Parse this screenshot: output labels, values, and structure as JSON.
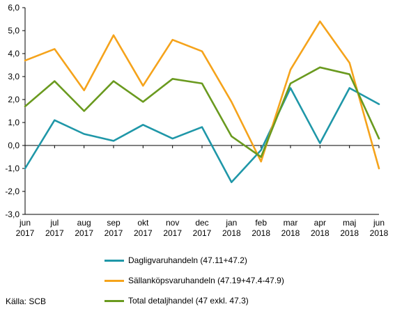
{
  "chart_data": {
    "type": "line",
    "categories": [
      [
        "jun",
        "2017"
      ],
      [
        "jul",
        "2017"
      ],
      [
        "aug",
        "2017"
      ],
      [
        "sep",
        "2017"
      ],
      [
        "okt",
        "2017"
      ],
      [
        "nov",
        "2017"
      ],
      [
        "dec",
        "2017"
      ],
      [
        "jan",
        "2018"
      ],
      [
        "feb",
        "2018"
      ],
      [
        "mar",
        "2018"
      ],
      [
        "apr",
        "2018"
      ],
      [
        "maj",
        "2018"
      ],
      [
        "jun",
        "2018"
      ]
    ],
    "ylim": [
      -3.0,
      6.0
    ],
    "yticks": [
      "-3,0",
      "-2,0",
      "-1,0",
      "0,0",
      "1,0",
      "2,0",
      "3,0",
      "4,0",
      "5,0",
      "6,0"
    ],
    "grid": false,
    "legend_position": "bottom",
    "series": [
      {
        "name": "Dagligvaruhandeln (47.11+47.2)",
        "color": "#1f97a8",
        "values": [
          -1.0,
          1.1,
          0.5,
          0.2,
          0.9,
          0.3,
          0.8,
          -1.6,
          -0.2,
          2.5,
          0.1,
          2.5,
          1.8
        ]
      },
      {
        "name": "Sällanköpsvaruhandeln (47.19+47.4-47.9)",
        "color": "#f5a31b",
        "values": [
          3.7,
          4.2,
          2.4,
          4.8,
          2.6,
          4.6,
          4.1,
          1.9,
          -0.7,
          3.3,
          5.4,
          3.6,
          -1.0
        ]
      },
      {
        "name": "Total detaljhandel (47 exkl. 47.3)",
        "color": "#6a9a1f",
        "values": [
          1.7,
          2.8,
          1.5,
          2.8,
          1.9,
          2.9,
          2.7,
          0.4,
          -0.5,
          2.7,
          3.4,
          3.1,
          0.3
        ]
      }
    ]
  },
  "source_text": "Källa: SCB"
}
